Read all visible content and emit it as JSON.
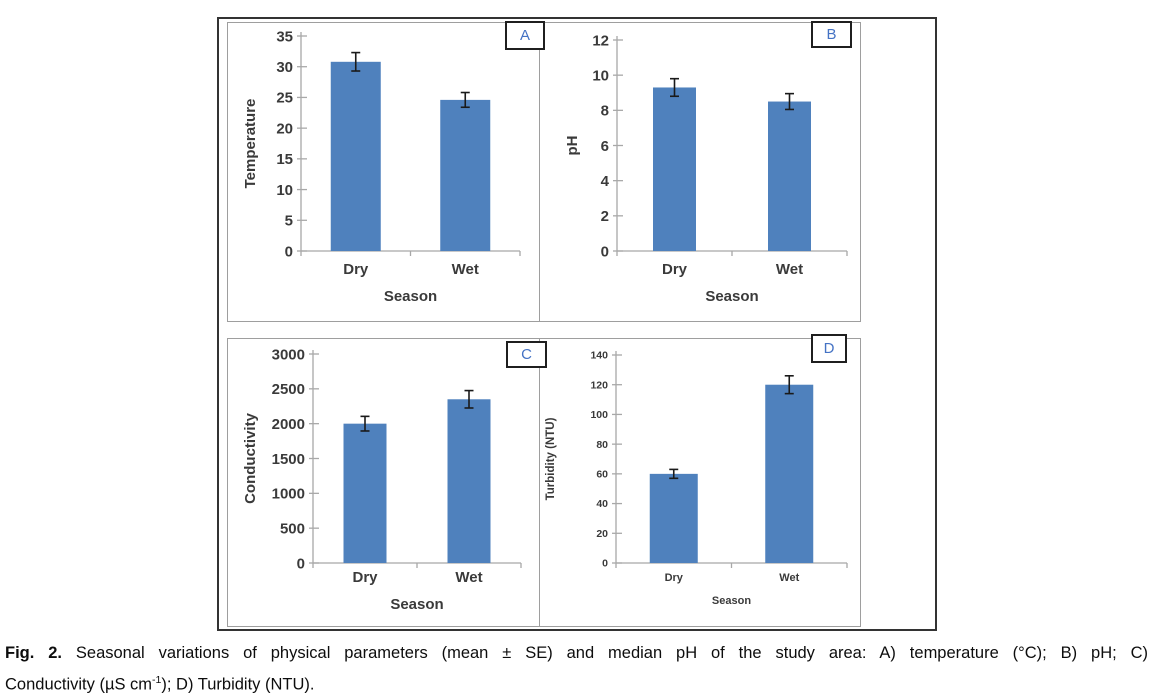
{
  "figure": {
    "caption": {
      "fig_label": "Fig. 2.",
      "line1_rest": "Seasonal variations of physical parameters (mean ± SE) and median pH of the study area: A) temperature (°C); B) pH; C)",
      "line2_pre": "Conductivity (µS cm",
      "line2_sup": "-1",
      "line2_post": "); D) Turbidity (NTU)."
    }
  },
  "chart_data": [
    {
      "type": "bar",
      "panel_label": "A",
      "title": "",
      "categories": [
        "Dry",
        "Wet"
      ],
      "values": [
        30.8,
        24.6
      ],
      "errors": [
        1.5,
        1.2
      ],
      "xlabel": "Season",
      "ylabel": "Temperature",
      "ylim": [
        0,
        35
      ],
      "ytick_step": 5,
      "grid": false,
      "legend_position": "none"
    },
    {
      "type": "bar",
      "panel_label": "B",
      "title": "",
      "categories": [
        "Dry",
        "Wet"
      ],
      "values": [
        9.3,
        8.5
      ],
      "errors": [
        0.5,
        0.45
      ],
      "xlabel": "Season",
      "ylabel": "pH",
      "ylim": [
        0,
        12
      ],
      "ytick_step": 2,
      "grid": false,
      "legend_position": "none"
    },
    {
      "type": "bar",
      "panel_label": "C",
      "title": "",
      "categories": [
        "Dry",
        "Wet"
      ],
      "values": [
        2000,
        2350
      ],
      "errors": [
        105,
        125
      ],
      "xlabel": "Season",
      "ylabel": "Conductivity",
      "ylim": [
        0,
        3000
      ],
      "ytick_step": 500,
      "grid": false,
      "legend_position": "none"
    },
    {
      "type": "bar",
      "panel_label": "D",
      "title": "",
      "categories": [
        "Dry",
        "Wet"
      ],
      "values": [
        60,
        120
      ],
      "errors": [
        3,
        6
      ],
      "xlabel": "Season",
      "ylabel": "Turbidity (NTU)",
      "ylim": [
        0,
        140
      ],
      "ytick_step": 20,
      "grid": false,
      "legend_position": "none"
    }
  ],
  "colors": {
    "bar_fill": "#4F81BD",
    "panel_letter": "#4472C4",
    "axis_line": "#A8A8A8",
    "tick_text": "#3A3A3A",
    "error_bar": "#1A1A1A",
    "outer_border": "#333333",
    "inner_border": "#9E9E9E"
  }
}
